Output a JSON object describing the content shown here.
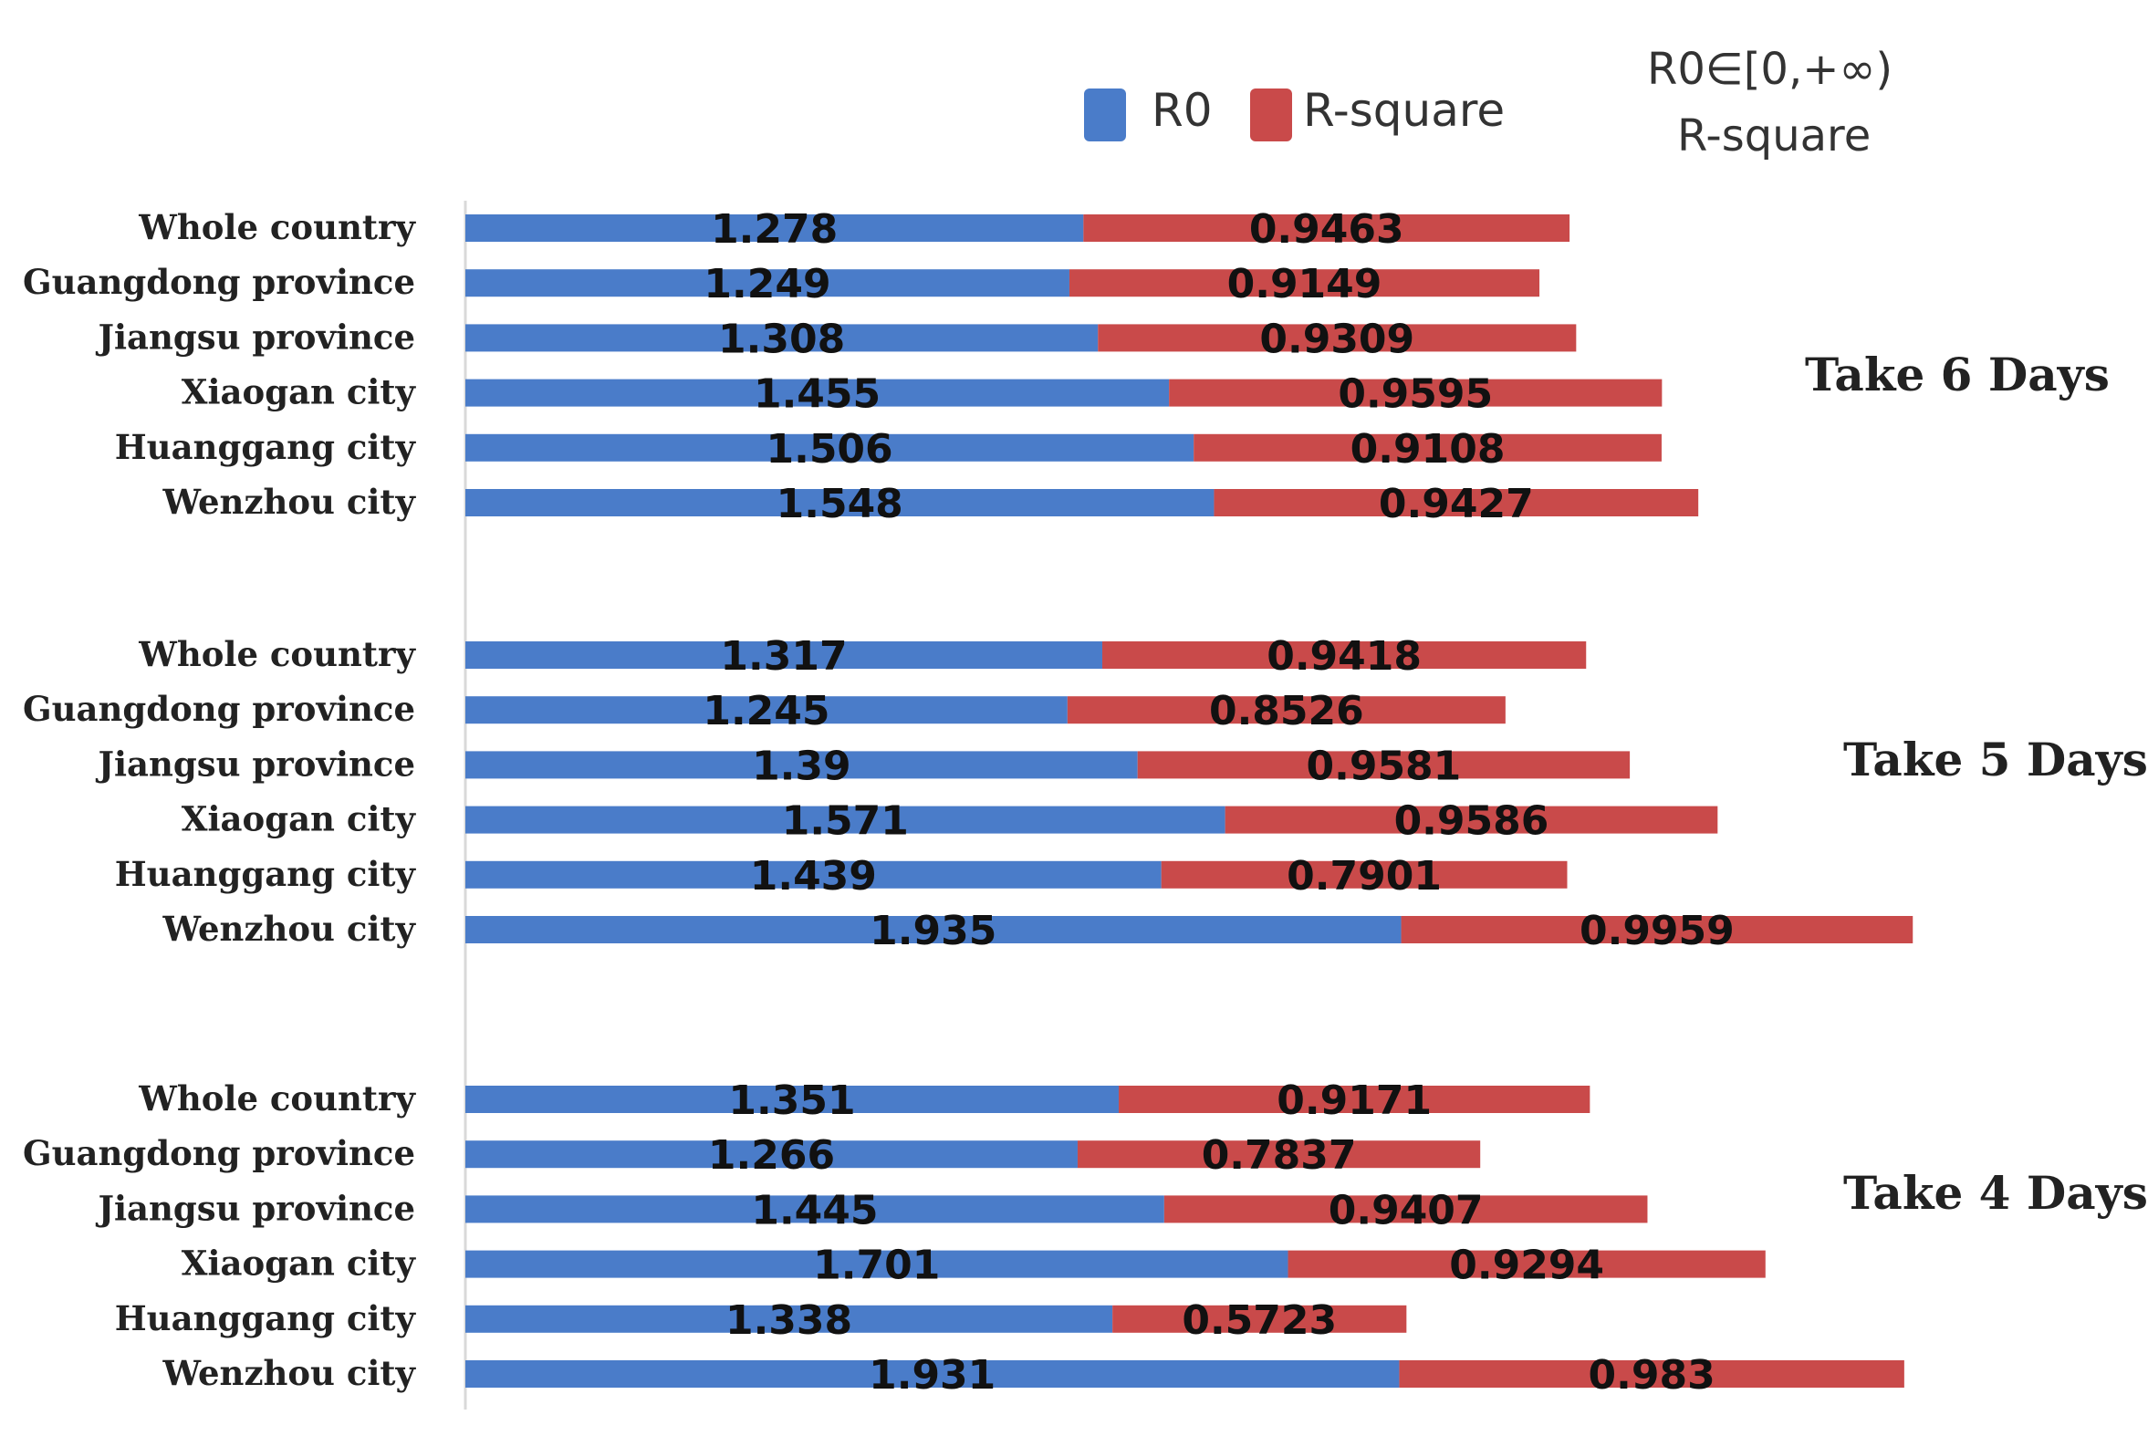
{
  "chart_data": {
    "type": "bar",
    "orientation": "horizontal",
    "stacked": true,
    "legend": [
      {
        "key": "r0",
        "label": "R0",
        "color": "#4a7cc9"
      },
      {
        "key": "rsq",
        "label": "R-square",
        "color": "#c94a4a"
      }
    ],
    "legend_position": "top-right",
    "note_lines": [
      "R0∈[0,+∞)",
      "R-square"
    ],
    "categories": [
      "Whole country",
      "Guangdong province",
      "Jiangsu province",
      "Xiaogan city",
      "Huanggang city",
      "Wenzhou city"
    ],
    "groups": [
      {
        "label": "Take 6 Days",
        "r0": [
          1.278,
          1.249,
          1.308,
          1.455,
          1.506,
          1.548
        ],
        "r0_labels": [
          "1.278",
          "1.249",
          "1.308",
          "1.455",
          "1.506",
          "1.548"
        ],
        "rsq": [
          0.9463,
          0.9149,
          0.9309,
          0.9595,
          0.9108,
          0.9427
        ],
        "rsq_labels": [
          "0.9463",
          "0.9149",
          "0.9309",
          "0.9595",
          "0.9108",
          "0.9427"
        ]
      },
      {
        "label": "Take 5 Days",
        "r0": [
          1.317,
          1.245,
          1.39,
          1.571,
          1.439,
          1.935
        ],
        "r0_labels": [
          "1.317",
          "1.245",
          "1.39",
          "1.571",
          "1.439",
          "1.935"
        ],
        "rsq": [
          0.9418,
          0.8526,
          0.9581,
          0.9586,
          0.7901,
          0.9959
        ],
        "rsq_labels": [
          "0.9418",
          "0.8526",
          "0.9581",
          "0.9586",
          "0.7901",
          "0.9959"
        ]
      },
      {
        "label": "Take 4 Days",
        "r0": [
          1.351,
          1.266,
          1.445,
          1.701,
          1.338,
          1.931
        ],
        "r0_labels": [
          "1.351",
          "1.266",
          "1.445",
          "1.701",
          "1.338",
          "1.931"
        ],
        "rsq": [
          0.9171,
          0.7837,
          0.9407,
          0.9294,
          0.5723,
          0.983
        ],
        "rsq_labels": [
          "0.9171",
          "0.7837",
          "0.9407",
          "0.9294",
          "0.5723",
          "0.983"
        ]
      }
    ]
  }
}
